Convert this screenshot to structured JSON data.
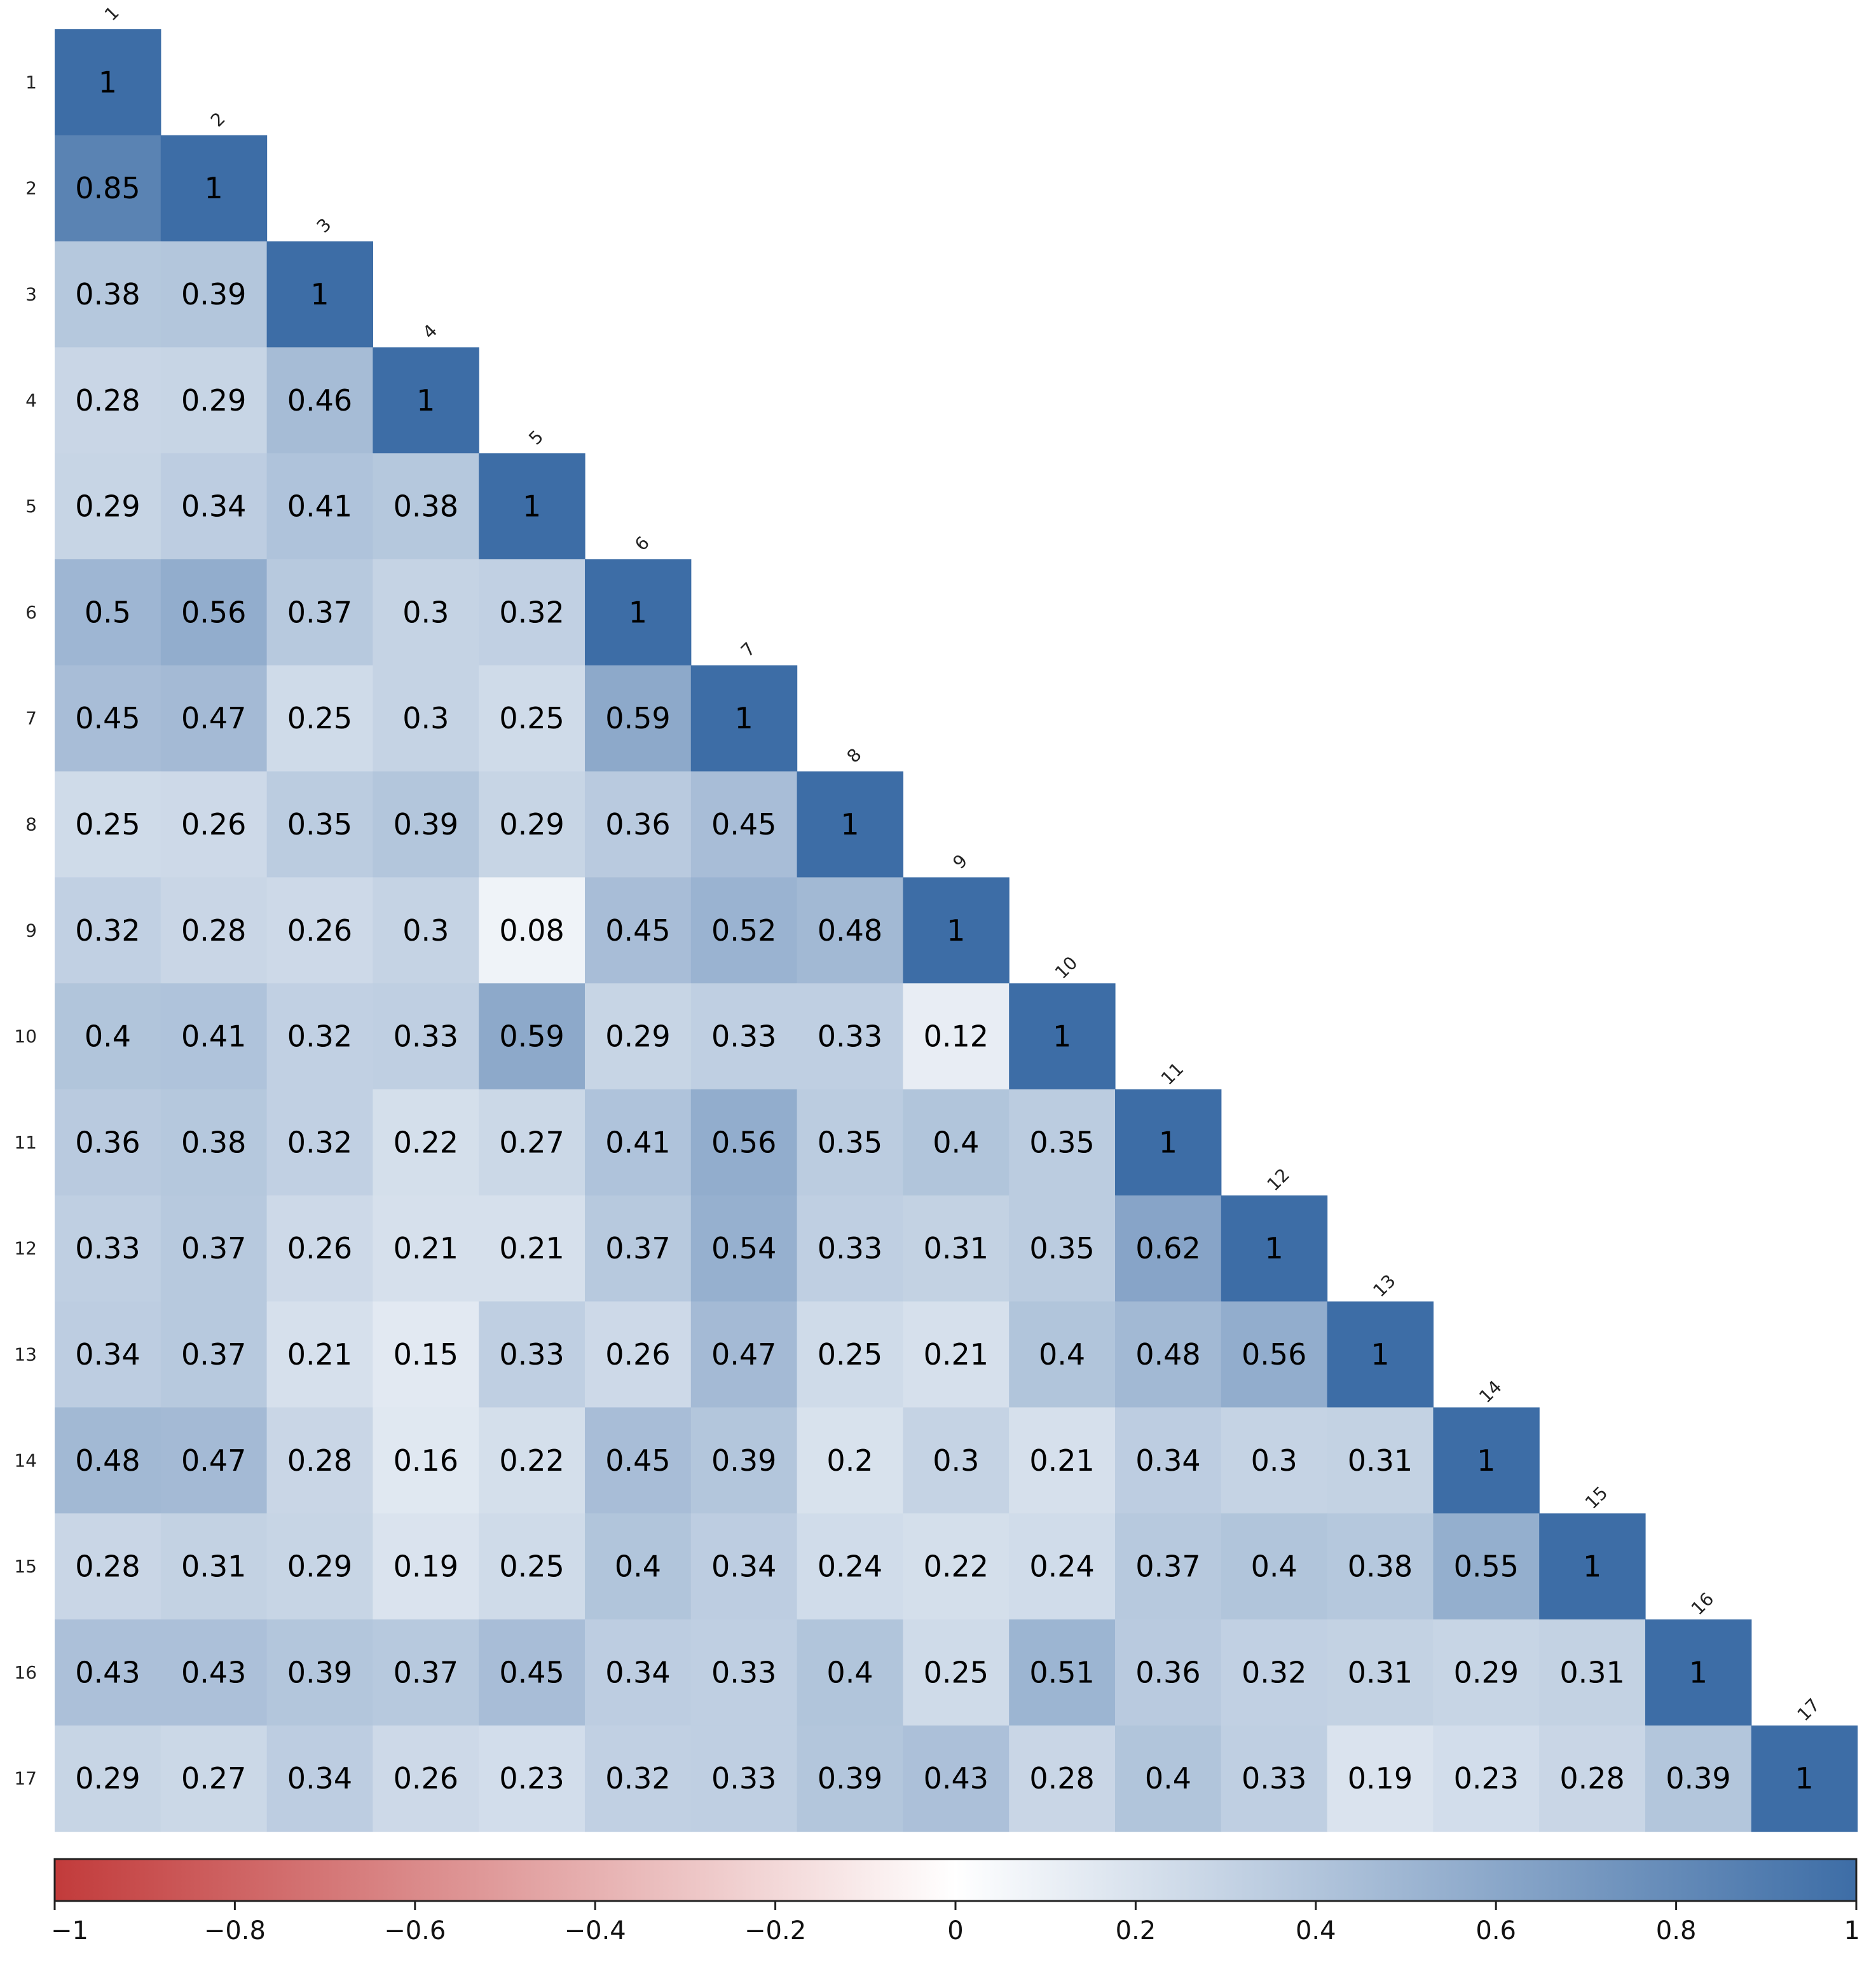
{
  "chart_data": {
    "type": "heatmap",
    "labels": [
      "1",
      "2",
      "3",
      "4",
      "5",
      "6",
      "7",
      "8",
      "9",
      "10",
      "11",
      "12",
      "13",
      "14",
      "15",
      "16",
      "17"
    ],
    "matrix": [
      [
        1
      ],
      [
        0.85,
        1
      ],
      [
        0.38,
        0.39,
        1
      ],
      [
        0.28,
        0.29,
        0.46,
        1
      ],
      [
        0.29,
        0.34,
        0.41,
        0.38,
        1
      ],
      [
        0.5,
        0.56,
        0.37,
        0.3,
        0.32,
        1
      ],
      [
        0.45,
        0.47,
        0.25,
        0.3,
        0.25,
        0.59,
        1
      ],
      [
        0.25,
        0.26,
        0.35,
        0.39,
        0.29,
        0.36,
        0.45,
        1
      ],
      [
        0.32,
        0.28,
        0.26,
        0.3,
        0.08,
        0.45,
        0.52,
        0.48,
        1
      ],
      [
        0.4,
        0.41,
        0.32,
        0.33,
        0.59,
        0.29,
        0.33,
        0.33,
        0.12,
        1
      ],
      [
        0.36,
        0.38,
        0.32,
        0.22,
        0.27,
        0.41,
        0.56,
        0.35,
        0.4,
        0.35,
        1
      ],
      [
        0.33,
        0.37,
        0.26,
        0.21,
        0.21,
        0.37,
        0.54,
        0.33,
        0.31,
        0.35,
        0.62,
        1
      ],
      [
        0.34,
        0.37,
        0.21,
        0.15,
        0.33,
        0.26,
        0.47,
        0.25,
        0.21,
        0.4,
        0.48,
        0.56,
        1
      ],
      [
        0.48,
        0.47,
        0.28,
        0.16,
        0.22,
        0.45,
        0.39,
        0.2,
        0.3,
        0.21,
        0.34,
        0.3,
        0.31,
        1
      ],
      [
        0.28,
        0.31,
        0.29,
        0.19,
        0.25,
        0.4,
        0.34,
        0.24,
        0.22,
        0.24,
        0.37,
        0.4,
        0.38,
        0.55,
        1
      ],
      [
        0.43,
        0.43,
        0.39,
        0.37,
        0.45,
        0.34,
        0.33,
        0.4,
        0.25,
        0.51,
        0.36,
        0.32,
        0.31,
        0.29,
        0.31,
        1
      ],
      [
        0.29,
        0.27,
        0.34,
        0.26,
        0.23,
        0.32,
        0.33,
        0.39,
        0.43,
        0.28,
        0.4,
        0.33,
        0.19,
        0.23,
        0.28,
        0.39,
        1
      ]
    ],
    "colorbar": {
      "range": [
        -1,
        1
      ],
      "ticks": [
        "−1",
        "−0.8",
        "−0.6",
        "−0.4",
        "−0.2",
        "0",
        "0.2",
        "0.4",
        "0.6",
        "0.8",
        "1"
      ],
      "tick_values": [
        -1,
        -0.8,
        -0.6,
        -0.4,
        -0.2,
        0,
        0.2,
        0.4,
        0.6,
        0.8,
        1
      ],
      "placement": "bottom"
    },
    "colors": {
      "negative": "#c23b3b",
      "mid": "#ffffff",
      "positive": "#3d6da6"
    }
  }
}
